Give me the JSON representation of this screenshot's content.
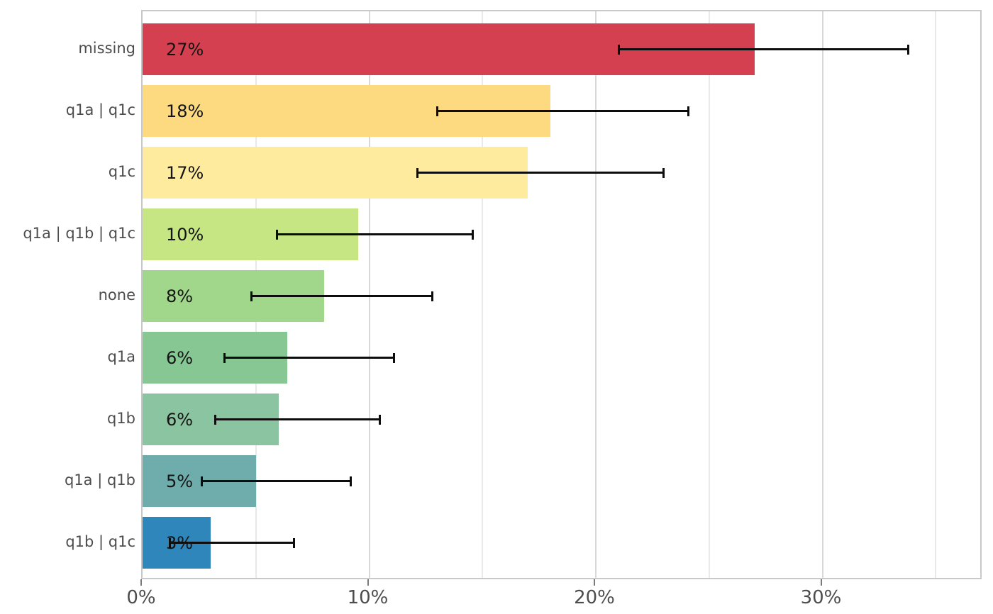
{
  "chart_data": {
    "type": "bar",
    "orientation": "horizontal",
    "title": "",
    "xlabel": "",
    "ylabel": "",
    "legend": "none",
    "grid": true,
    "xlim": [
      0,
      37.1
    ],
    "x_major_ticks": {
      "values": [
        0,
        10,
        20,
        30
      ],
      "labels": [
        "0%",
        "10%",
        "20%",
        "30%"
      ]
    },
    "x_minor_gridline_values": [
      5,
      15,
      25,
      35
    ],
    "bars": [
      {
        "category": "missing",
        "value": 27.0,
        "label": "27%",
        "ci_low": 21.0,
        "ci_high": 33.8,
        "color": "#d4404f"
      },
      {
        "category": "q1a | q1c",
        "value": 18.0,
        "label": "18%",
        "ci_low": 13.0,
        "ci_high": 24.1,
        "color": "#fdd980"
      },
      {
        "category": "q1c",
        "value": 17.0,
        "label": "17%",
        "ci_low": 12.1,
        "ci_high": 23.0,
        "color": "#feeb9e"
      },
      {
        "category": "q1a | q1b | q1c",
        "value": 9.5,
        "label": "10%",
        "ci_low": 5.9,
        "ci_high": 14.6,
        "color": "#c6e684"
      },
      {
        "category": "none",
        "value": 8.0,
        "label": "8%",
        "ci_low": 4.8,
        "ci_high": 12.8,
        "color": "#a1d78a"
      },
      {
        "category": "q1a",
        "value": 6.4,
        "label": "6%",
        "ci_low": 3.6,
        "ci_high": 11.1,
        "color": "#86c794"
      },
      {
        "category": "q1b",
        "value": 6.0,
        "label": "6%",
        "ci_low": 3.2,
        "ci_high": 10.5,
        "color": "#8ac4a0"
      },
      {
        "category": "q1a | q1b",
        "value": 5.0,
        "label": "5%",
        "ci_low": 2.6,
        "ci_high": 9.2,
        "color": "#6fadac"
      },
      {
        "category": "q1b | q1c",
        "value": 3.0,
        "label": "3%",
        "ci_low": 1.2,
        "ci_high": 6.7,
        "color": "#2f86ba"
      }
    ],
    "colors": {
      "error_bar": "#0d0d0d",
      "panel_border": "#c9c9c9",
      "gridline_major": "#d8d8d8",
      "gridline_minor": "#e9e9e9",
      "axis_text": "#4d4d4d",
      "value_label": "#141414",
      "background": "#ffffff"
    }
  }
}
